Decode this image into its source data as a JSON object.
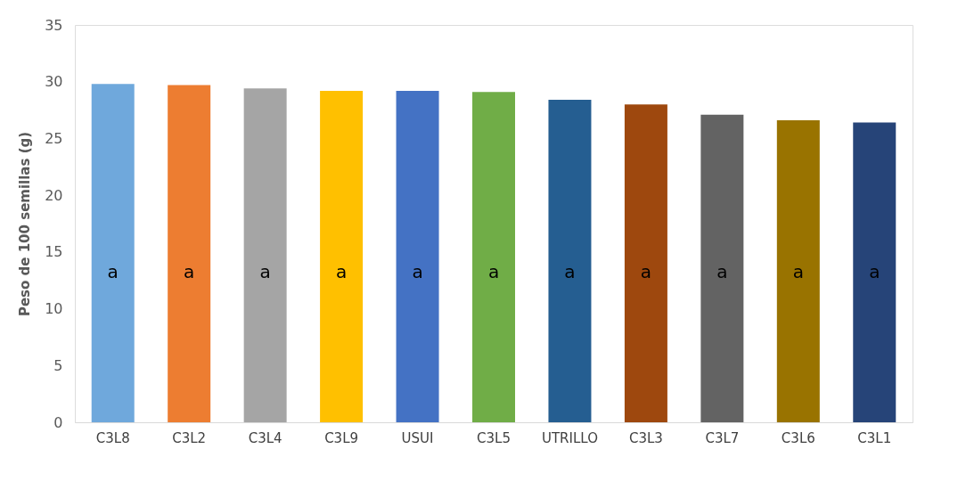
{
  "chart_data": {
    "type": "bar",
    "ylabel": "Peso de 100 semillas (g)",
    "categories": [
      "C3L8",
      "C3L2",
      "C3L4",
      "C3L9",
      "USUI",
      "C3L5",
      "UTRILLO",
      "C3L3",
      "C3L7",
      "C3L6",
      "C3L1"
    ],
    "values": [
      29.8,
      29.7,
      29.4,
      29.2,
      29.2,
      29.1,
      28.4,
      28.0,
      27.1,
      26.6,
      26.4
    ],
    "colors": [
      "#6fa8dc",
      "#ed7d31",
      "#a5a5a5",
      "#ffc000",
      "#4472c4",
      "#70ad47",
      "#255e91",
      "#9e480e",
      "#636363",
      "#997300",
      "#264478"
    ],
    "value_labels": [
      "a",
      "a",
      "a",
      "a",
      "a",
      "a",
      "a",
      "a",
      "a",
      "a",
      "a"
    ],
    "ylim": [
      0,
      35
    ],
    "yticks": [
      0,
      5,
      10,
      15,
      20,
      25,
      30,
      35
    ],
    "grid": false
  }
}
